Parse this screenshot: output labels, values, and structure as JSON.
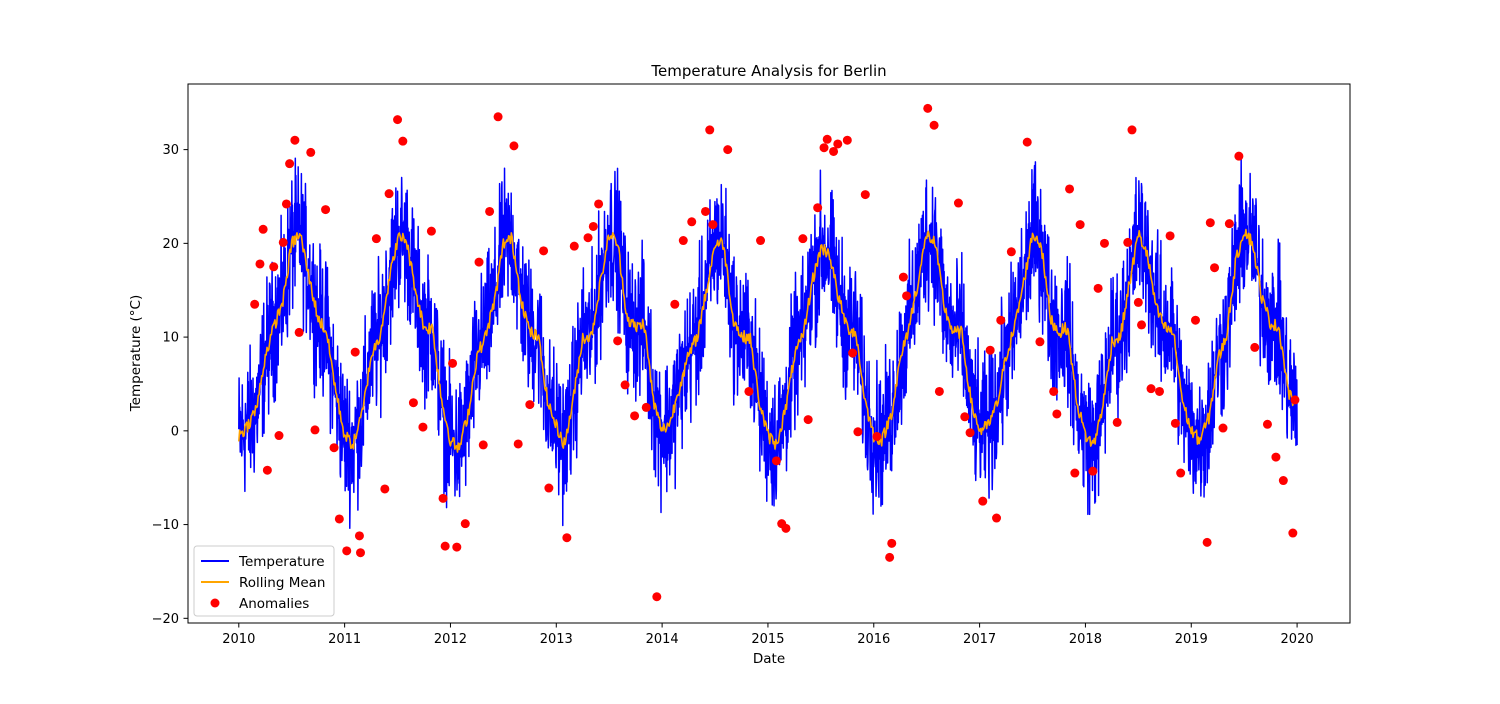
{
  "chart_data": {
    "type": "line",
    "title": "Temperature Analysis for Berlin",
    "xlabel": "Date",
    "ylabel": "Temperature (°C)",
    "xlim": [
      2009.52,
      2020.5
    ],
    "ylim": [
      -20.5,
      37
    ],
    "x_ticks": [
      2010,
      2011,
      2012,
      2013,
      2014,
      2015,
      2016,
      2017,
      2018,
      2019,
      2020
    ],
    "x_tick_labels": [
      "2010",
      "2011",
      "2012",
      "2013",
      "2014",
      "2015",
      "2016",
      "2017",
      "2018",
      "2019",
      "2020"
    ],
    "y_ticks": [
      -20,
      -10,
      0,
      10,
      20,
      30
    ],
    "y_tick_labels": [
      "−20",
      "−10",
      "0",
      "10",
      "20",
      "30"
    ],
    "grid": false,
    "legend_position": "lower-left",
    "legend": [
      "Temperature",
      "Rolling Mean",
      "Anomalies"
    ],
    "colors": {
      "temperature": "#0000ff",
      "rolling_mean": "#ffa500",
      "anomalies": "#ff0000"
    },
    "series": [
      {
        "name": "Temperature",
        "kind": "line",
        "generator": "daily series 2010-01-01 to 2019-12-31: rolling mean plus noise of roughly ±8 °C",
        "x_start": 2010.0,
        "x_end": 2020.0,
        "noise_amplitude": 8
      },
      {
        "name": "Rolling Mean",
        "kind": "line",
        "x": [
          2010.0,
          2010.08,
          2010.17,
          2010.25,
          2010.33,
          2010.42,
          2010.5,
          2010.58,
          2010.67,
          2010.75,
          2010.83,
          2010.92,
          2011.0,
          2011.08,
          2011.17,
          2011.25,
          2011.33,
          2011.42,
          2011.5,
          2011.58,
          2011.67,
          2011.75,
          2011.83,
          2011.92,
          2012.0,
          2012.08,
          2012.17,
          2012.25,
          2012.33,
          2012.42,
          2012.5,
          2012.58,
          2012.67,
          2012.75,
          2012.83,
          2012.92,
          2013.0,
          2013.08,
          2013.17,
          2013.25,
          2013.33,
          2013.42,
          2013.5,
          2013.58,
          2013.67,
          2013.75,
          2013.83,
          2013.92,
          2014.0,
          2014.08,
          2014.17,
          2014.25,
          2014.33,
          2014.42,
          2014.5,
          2014.58,
          2014.67,
          2014.75,
          2014.83,
          2014.92,
          2015.0,
          2015.08,
          2015.17,
          2015.25,
          2015.33,
          2015.42,
          2015.5,
          2015.58,
          2015.67,
          2015.75,
          2015.83,
          2015.92,
          2016.0,
          2016.08,
          2016.17,
          2016.25,
          2016.33,
          2016.42,
          2016.5,
          2016.58,
          2016.67,
          2016.75,
          2016.83,
          2016.92,
          2017.0,
          2017.08,
          2017.17,
          2017.25,
          2017.33,
          2017.42,
          2017.5,
          2017.58,
          2017.67,
          2017.75,
          2017.83,
          2017.92,
          2018.0,
          2018.08,
          2018.17,
          2018.25,
          2018.33,
          2018.42,
          2018.5,
          2018.58,
          2018.67,
          2018.75,
          2018.83,
          2018.92,
          2019.0,
          2019.08,
          2019.17,
          2019.25,
          2019.33,
          2019.42,
          2019.5,
          2019.58,
          2019.67,
          2019.75,
          2019.83,
          2019.92,
          2020.0
        ],
        "values": [
          -0.5,
          0.5,
          2.5,
          8.0,
          11.0,
          14.0,
          20.0,
          21.0,
          16.0,
          12.0,
          10.5,
          4.0,
          -0.5,
          -1.5,
          2.0,
          8.0,
          10.0,
          16.0,
          20.5,
          20.5,
          15.0,
          11.0,
          11.0,
          3.0,
          -1.0,
          -2.0,
          2.0,
          8.0,
          10.0,
          14.0,
          20.0,
          20.5,
          14.0,
          10.5,
          10.0,
          3.0,
          0.5,
          -1.5,
          4.0,
          10.0,
          10.0,
          16.0,
          21.0,
          20.0,
          12.0,
          11.0,
          11.5,
          3.0,
          0.0,
          1.0,
          5.0,
          8.0,
          10.0,
          15.0,
          20.0,
          20.0,
          12.0,
          10.0,
          10.0,
          3.0,
          -0.5,
          -1.5,
          2.5,
          8.0,
          10.0,
          16.0,
          19.5,
          19.0,
          14.0,
          11.0,
          10.5,
          3.0,
          -0.5,
          -1.0,
          2.0,
          7.5,
          11.0,
          16.0,
          21.0,
          20.0,
          13.0,
          10.5,
          10.5,
          3.0,
          0.0,
          0.5,
          3.0,
          8.0,
          11.0,
          16.0,
          21.0,
          20.0,
          12.0,
          10.5,
          11.0,
          3.0,
          -0.5,
          -1.5,
          3.0,
          9.5,
          10.0,
          16.0,
          21.0,
          19.0,
          13.0,
          11.0,
          10.5,
          3.0,
          0.0,
          -1.0,
          1.5,
          7.5,
          10.0,
          18.0,
          21.5,
          20.0,
          14.0,
          11.5,
          11.0,
          4.0,
          2.5
        ]
      },
      {
        "name": "Anomalies",
        "kind": "scatter",
        "x": [
          2010.15,
          2010.2,
          2010.23,
          2010.27,
          2010.33,
          2010.38,
          2010.42,
          2010.45,
          2010.48,
          2010.53,
          2010.57,
          2010.68,
          2010.72,
          2010.82,
          2010.9,
          2010.95,
          2011.02,
          2011.1,
          2011.14,
          2011.15,
          2011.3,
          2011.38,
          2011.42,
          2011.5,
          2011.55,
          2011.65,
          2011.74,
          2011.82,
          2011.93,
          2011.95,
          2012.02,
          2012.06,
          2012.14,
          2012.27,
          2012.31,
          2012.37,
          2012.45,
          2012.6,
          2012.64,
          2012.75,
          2012.88,
          2012.93,
          2013.1,
          2013.17,
          2013.3,
          2013.35,
          2013.4,
          2013.58,
          2013.65,
          2013.74,
          2013.85,
          2013.95,
          2014.12,
          2014.2,
          2014.28,
          2014.41,
          2014.45,
          2014.48,
          2014.62,
          2014.82,
          2014.93,
          2015.08,
          2015.13,
          2015.17,
          2015.33,
          2015.38,
          2015.47,
          2015.53,
          2015.56,
          2015.62,
          2015.66,
          2015.75,
          2015.8,
          2015.85,
          2015.92,
          2016.03,
          2016.15,
          2016.17,
          2016.28,
          2016.31,
          2016.51,
          2016.57,
          2016.62,
          2016.8,
          2016.86,
          2016.91,
          2017.03,
          2017.1,
          2017.16,
          2017.2,
          2017.3,
          2017.45,
          2017.57,
          2017.7,
          2017.73,
          2017.85,
          2017.9,
          2017.95,
          2018.07,
          2018.12,
          2018.18,
          2018.3,
          2018.4,
          2018.44,
          2018.5,
          2018.53,
          2018.62,
          2018.7,
          2018.8,
          2018.85,
          2018.9,
          2019.04,
          2019.15,
          2019.18,
          2019.22,
          2019.3,
          2019.36,
          2019.45,
          2019.6,
          2019.72,
          2019.8,
          2019.87,
          2019.96,
          2019.98
        ],
        "values": [
          13.5,
          17.8,
          21.5,
          -4.2,
          17.5,
          -0.5,
          20.1,
          24.2,
          28.5,
          31.0,
          10.5,
          29.7,
          0.1,
          23.6,
          -1.8,
          -9.4,
          -12.8,
          8.4,
          -11.2,
          -13.0,
          20.5,
          -6.2,
          25.3,
          33.2,
          30.9,
          3.0,
          0.4,
          21.3,
          -7.2,
          -12.3,
          7.2,
          -12.4,
          -9.9,
          18.0,
          -1.5,
          23.4,
          33.5,
          30.4,
          -1.4,
          2.8,
          19.2,
          -6.1,
          -11.4,
          19.7,
          20.6,
          21.8,
          24.2,
          9.6,
          4.9,
          1.6,
          2.5,
          -17.7,
          13.5,
          20.3,
          22.3,
          23.4,
          32.1,
          22.0,
          30.0,
          4.2,
          20.3,
          -3.2,
          -9.9,
          -10.4,
          20.5,
          1.2,
          23.8,
          30.2,
          31.1,
          29.8,
          30.6,
          31.0,
          8.3,
          -0.1,
          25.2,
          -0.6,
          -13.5,
          -12.0,
          16.4,
          14.4,
          34.4,
          32.6,
          4.2,
          24.3,
          1.5,
          -0.2,
          -7.5,
          8.6,
          -9.3,
          11.8,
          19.1,
          30.8,
          9.5,
          4.2,
          1.8,
          25.8,
          -4.5,
          22.0,
          -4.3,
          15.2,
          20.0,
          0.9,
          20.1,
          32.1,
          13.7,
          11.3,
          4.5,
          4.2,
          20.8,
          0.8,
          -4.5,
          11.8,
          -11.9,
          22.2,
          17.4,
          0.3,
          22.1,
          29.3,
          8.9,
          0.7,
          -2.8,
          -5.3,
          -10.9,
          3.3
        ]
      }
    ]
  }
}
